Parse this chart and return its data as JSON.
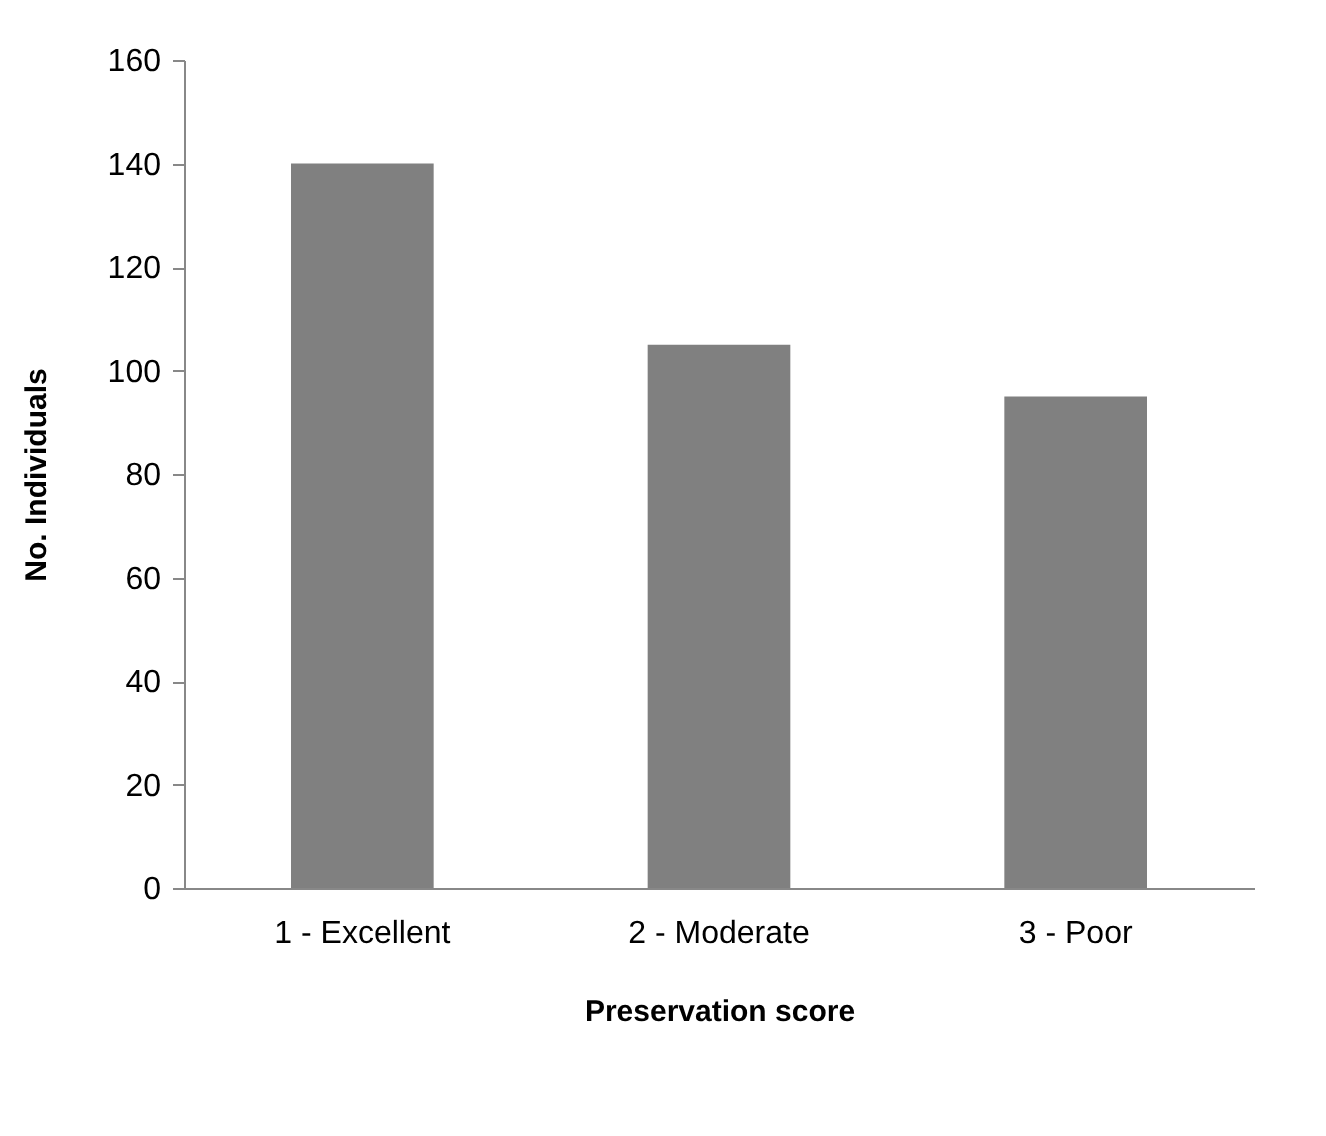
{
  "chart_data": {
    "type": "bar",
    "xlabel": "Preservation score",
    "ylabel": "No. Individuals",
    "categories": [
      "1 - Excellent",
      "2 - Moderate",
      "3 - Poor"
    ],
    "values": [
      140,
      105,
      95
    ],
    "color": "#808080",
    "ylim": [
      0,
      160
    ],
    "yticks": [
      0,
      20,
      40,
      60,
      80,
      100,
      120,
      140,
      160
    ],
    "grid": false
  }
}
